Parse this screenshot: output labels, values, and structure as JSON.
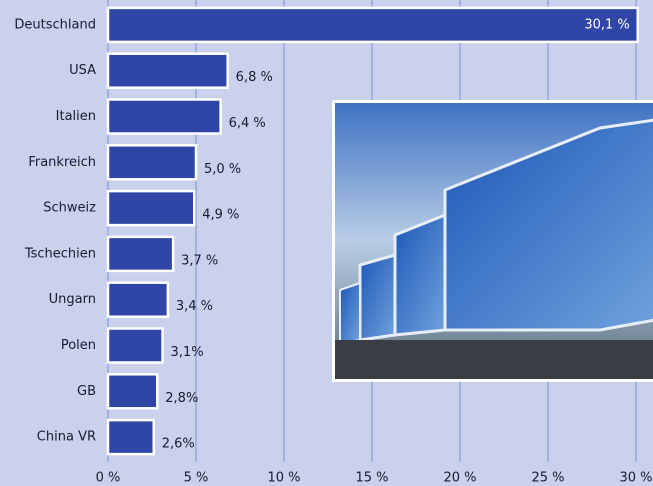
{
  "chart_data": {
    "type": "bar",
    "orientation": "horizontal",
    "categories": [
      "Deutschland",
      "USA",
      "Italien",
      "Frankreich",
      "Schweiz",
      "Tschechien",
      "Ungarn",
      "Polen",
      "GB",
      "China VR"
    ],
    "values": [
      30.1,
      6.8,
      6.4,
      5.0,
      4.9,
      3.7,
      3.4,
      3.1,
      2.8,
      2.6
    ],
    "value_labels": [
      "30,1 %",
      "6,8 %",
      "6,4 %",
      "5,0 %",
      "4,9 %",
      "3,7 %",
      "3,4 %",
      "3,1%",
      "2,8%",
      "2,6%"
    ],
    "color": "#2f46a6",
    "xlim": [
      0,
      30
    ],
    "xticks": [
      {
        "value": 0,
        "label": "0 %"
      },
      {
        "value": 5,
        "label": "5 %"
      },
      {
        "value": 10,
        "label": "10 %"
      },
      {
        "value": 15,
        "label": "15 %"
      },
      {
        "value": 20,
        "label": "20 %"
      },
      {
        "value": 25,
        "label": "25 %"
      },
      {
        "value": 30,
        "label": "30 %"
      }
    ],
    "grid": true
  }
}
